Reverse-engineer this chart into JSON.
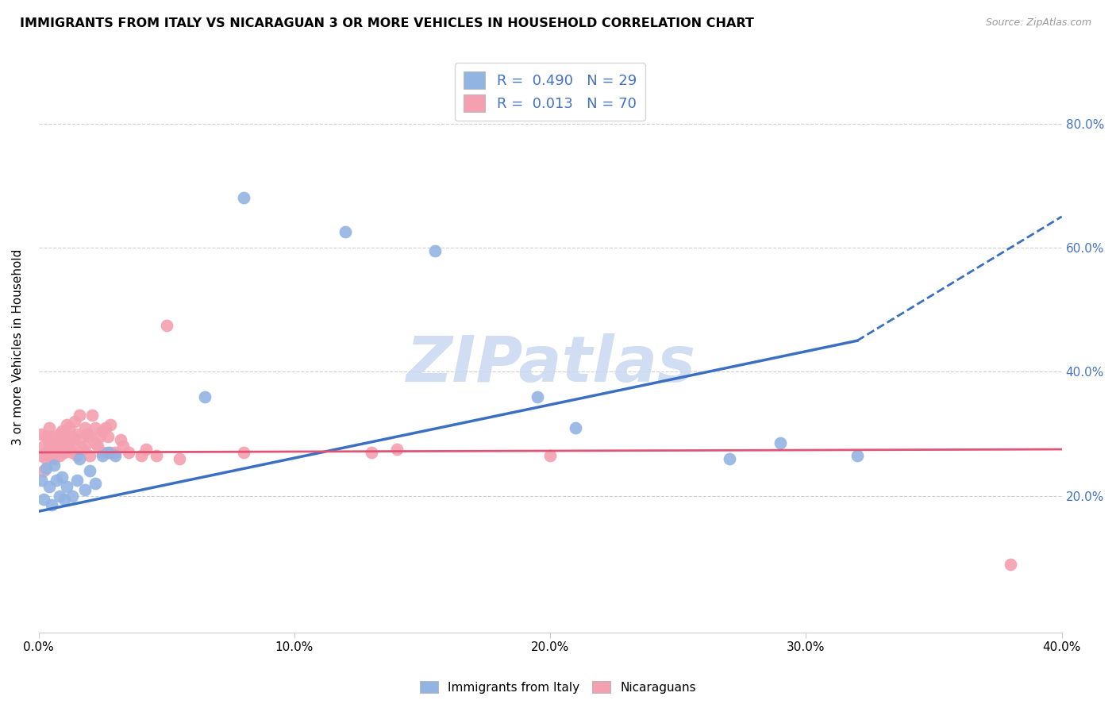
{
  "title": "IMMIGRANTS FROM ITALY VS NICARAGUAN 3 OR MORE VEHICLES IN HOUSEHOLD CORRELATION CHART",
  "source": "Source: ZipAtlas.com",
  "ylabel": "3 or more Vehicles in Household",
  "xlabel_ticks": [
    "0.0%",
    "10.0%",
    "20.0%",
    "30.0%",
    "40.0%"
  ],
  "ylabel_ticks": [
    "20.0%",
    "40.0%",
    "60.0%",
    "80.0%"
  ],
  "xlim": [
    0.0,
    0.4
  ],
  "ylim": [
    -0.02,
    0.9
  ],
  "italy_R": 0.49,
  "italy_N": 29,
  "nicaraguan_R": 0.013,
  "nicaraguan_N": 70,
  "italy_color": "#92b4e3",
  "nicaraguan_color": "#f4a0b0",
  "italy_line_color": "#3a6fc4",
  "nicaraguan_line_color": "#e05575",
  "watermark": "ZIPatlas",
  "watermark_color": "#c8d8f0",
  "legend_italy_label": "Immigrants from Italy",
  "legend_nicaraguan_label": "Nicaraguans",
  "italy_x": [
    0.001,
    0.002,
    0.003,
    0.004,
    0.005,
    0.006,
    0.007,
    0.008,
    0.009,
    0.01,
    0.011,
    0.013,
    0.015,
    0.016,
    0.018,
    0.02,
    0.022,
    0.025,
    0.027,
    0.03,
    0.065,
    0.08,
    0.12,
    0.155,
    0.195,
    0.21,
    0.27,
    0.29,
    0.32
  ],
  "italy_y": [
    0.225,
    0.195,
    0.245,
    0.215,
    0.185,
    0.25,
    0.225,
    0.2,
    0.23,
    0.195,
    0.215,
    0.2,
    0.225,
    0.26,
    0.21,
    0.24,
    0.22,
    0.265,
    0.27,
    0.265,
    0.36,
    0.68,
    0.625,
    0.595,
    0.36,
    0.31,
    0.26,
    0.285,
    0.265
  ],
  "nicaraguan_x": [
    0.001,
    0.001,
    0.002,
    0.002,
    0.003,
    0.003,
    0.003,
    0.004,
    0.004,
    0.005,
    0.005,
    0.005,
    0.006,
    0.006,
    0.006,
    0.007,
    0.007,
    0.007,
    0.008,
    0.008,
    0.008,
    0.009,
    0.009,
    0.01,
    0.01,
    0.01,
    0.011,
    0.011,
    0.012,
    0.012,
    0.012,
    0.013,
    0.013,
    0.014,
    0.014,
    0.015,
    0.015,
    0.016,
    0.016,
    0.017,
    0.018,
    0.018,
    0.019,
    0.02,
    0.02,
    0.021,
    0.022,
    0.022,
    0.023,
    0.024,
    0.025,
    0.025,
    0.026,
    0.027,
    0.028,
    0.028,
    0.03,
    0.032,
    0.033,
    0.035,
    0.04,
    0.042,
    0.046,
    0.05,
    0.055,
    0.08,
    0.13,
    0.14,
    0.2,
    0.38
  ],
  "nicaraguan_y": [
    0.265,
    0.3,
    0.28,
    0.24,
    0.27,
    0.295,
    0.26,
    0.285,
    0.31,
    0.28,
    0.26,
    0.295,
    0.275,
    0.26,
    0.285,
    0.29,
    0.27,
    0.28,
    0.3,
    0.265,
    0.28,
    0.305,
    0.27,
    0.29,
    0.27,
    0.3,
    0.315,
    0.275,
    0.31,
    0.285,
    0.275,
    0.295,
    0.27,
    0.32,
    0.285,
    0.3,
    0.265,
    0.33,
    0.29,
    0.275,
    0.31,
    0.28,
    0.3,
    0.295,
    0.265,
    0.33,
    0.285,
    0.31,
    0.28,
    0.295,
    0.305,
    0.27,
    0.31,
    0.295,
    0.27,
    0.315,
    0.27,
    0.29,
    0.28,
    0.27,
    0.265,
    0.275,
    0.265,
    0.475,
    0.26,
    0.27,
    0.27,
    0.275,
    0.265,
    0.09
  ],
  "italy_line_x0": 0.0,
  "italy_line_y0": 0.175,
  "italy_line_x1": 0.32,
  "italy_line_y1": 0.45,
  "italy_line_dash_x1": 0.4,
  "italy_line_dash_y1": 0.65,
  "nic_line_x0": 0.0,
  "nic_line_y0": 0.27,
  "nic_line_x1": 0.4,
  "nic_line_y1": 0.275
}
